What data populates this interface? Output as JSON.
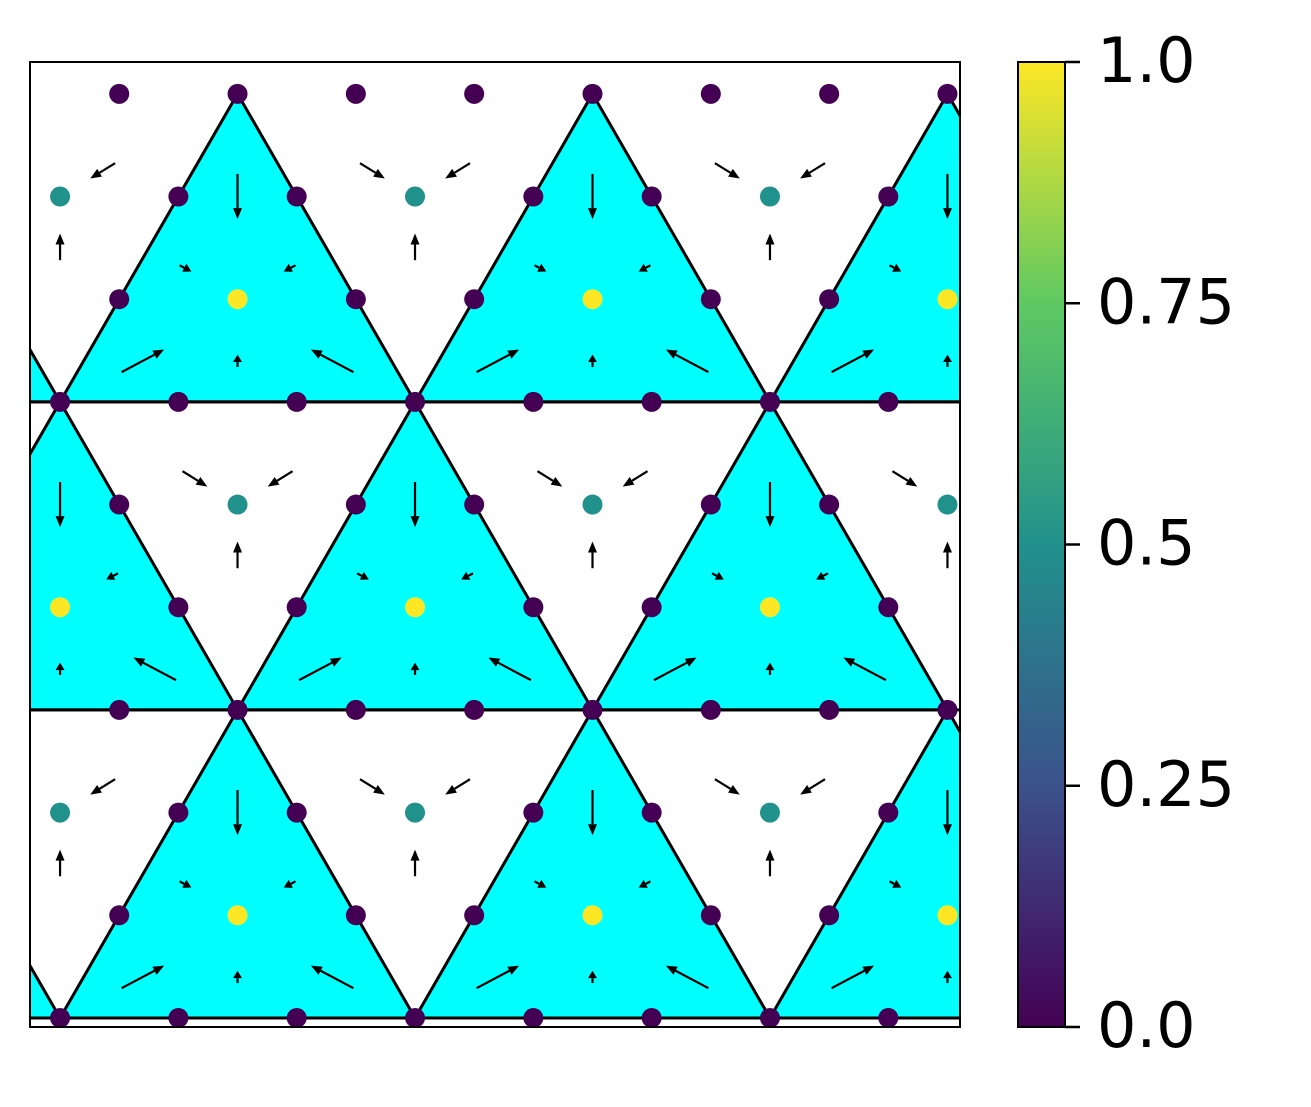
{
  "chart_data": {
    "type": "scatter",
    "x": [
      0,
      1,
      2,
      3,
      4,
      5,
      6,
      7,
      0.5,
      1.5,
      2.5,
      3.5,
      4.5,
      5.5,
      6.5,
      7.5,
      0,
      1,
      2,
      3,
      4,
      5,
      6,
      7,
      0.5,
      1.5,
      2.5,
      3.5,
      4.5,
      5.5,
      6.5,
      7.5,
      0,
      1,
      2,
      3,
      4,
      5,
      6,
      7,
      0.5,
      1.5,
      2.5,
      3.5,
      4.5,
      5.5,
      6.5,
      7.5,
      0,
      1,
      2,
      3,
      4,
      5,
      6,
      7,
      0.5,
      1.5,
      2.5,
      3.5,
      4.5,
      5.5,
      6.5,
      7.5,
      0,
      1,
      2,
      3,
      4,
      5,
      6,
      7,
      0.5,
      1.5,
      2.5,
      3.5,
      4.5,
      5.5,
      6.5,
      7.5
    ],
    "y": [
      0,
      0,
      0,
      0,
      0,
      0,
      0,
      0,
      1,
      1,
      1,
      1,
      1,
      1,
      1,
      1,
      2,
      2,
      2,
      2,
      2,
      2,
      2,
      2,
      3,
      3,
      3,
      3,
      3,
      3,
      3,
      3,
      4,
      4,
      4,
      4,
      4,
      4,
      4,
      4,
      5,
      5,
      5,
      5,
      5,
      5,
      5,
      5,
      6,
      6,
      6,
      6,
      6,
      6,
      6,
      6,
      7,
      7,
      7,
      7,
      7,
      7,
      7,
      7,
      8,
      8,
      8,
      8,
      8,
      8,
      8,
      8,
      9,
      9,
      9,
      9,
      9,
      9,
      9,
      9
    ],
    "values": [
      0,
      0,
      0,
      0,
      0,
      0,
      0,
      0,
      0,
      1,
      0,
      0,
      1,
      0,
      0,
      1,
      0.5,
      0,
      0,
      0.5,
      0,
      0,
      0.5,
      0,
      0,
      0,
      0,
      0,
      0,
      0,
      0,
      0,
      1,
      0,
      0,
      1,
      0,
      0,
      1,
      0,
      0,
      0.5,
      0,
      0,
      0.5,
      0,
      0,
      0.5,
      0,
      0,
      0,
      0,
      0,
      0,
      0,
      0,
      0,
      1,
      0,
      0,
      1,
      0,
      0,
      1,
      0.5,
      0,
      0,
      0.5,
      0,
      0,
      0.5,
      0,
      0,
      0,
      0,
      0,
      0,
      0,
      0,
      0
    ],
    "xlim": [
      -0.254,
      7.606
    ],
    "ylim": [
      -0.088,
      9.31
    ],
    "cmap": "viridis",
    "clim": [
      0,
      1
    ],
    "cticks": [
      {
        "value": 0,
        "label": "0.0"
      },
      0.25,
      0.5,
      0.75,
      {
        "value": 1,
        "label": "1.0"
      }
    ],
    "fill_color": "#00ffff",
    "quiver": {
      "x": [
        1.5,
        1.06,
        1.94,
        1.5,
        0.7,
        2.3,
        4.5,
        4.06,
        4.94,
        4.5,
        3.7,
        5.3,
        7.5,
        7.06,
        7.5,
        6.7,
        0,
        0.44,
        0,
        0.8,
        3,
        2.56,
        3.44,
        3,
        2.2,
        3.8,
        6,
        5.56,
        6.44,
        6,
        5.2,
        6.8,
        1.5,
        1.06,
        1.94,
        1.5,
        0.7,
        2.3,
        4.5,
        4.06,
        4.94,
        4.5,
        3.7,
        5.3,
        7.5,
        7.06,
        7.5,
        6.7,
        0.36,
        0,
        2.64,
        3.36,
        3,
        5.64,
        6.36,
        6,
        1.14,
        1.86,
        1.5,
        4.14,
        4.86,
        4.5,
        7.14,
        7.5,
        0.36,
        0,
        2.64,
        3.36,
        3,
        5.64,
        6.36,
        6
      ],
      "y": [
        2,
        1.3,
        1.3,
        0.4,
        0.4,
        0.4,
        2,
        1.3,
        1.3,
        0.4,
        0.4,
        0.4,
        2,
        1.3,
        0.4,
        0.4,
        5,
        4.3,
        3.4,
        3.4,
        5,
        4.3,
        4.3,
        3.4,
        3.4,
        3.4,
        5,
        4.3,
        4.3,
        3.4,
        3.4,
        3.4,
        8,
        7.3,
        7.3,
        6.4,
        6.4,
        6.4,
        8,
        7.3,
        7.3,
        6.4,
        6.4,
        6.4,
        8,
        7.3,
        6.4,
        6.4,
        2.25,
        1.51,
        2.25,
        2.25,
        1.51,
        2.25,
        2.25,
        1.51,
        5.25,
        5.25,
        4.51,
        5.25,
        5.25,
        4.51,
        5.25,
        4.51,
        8.25,
        7.51,
        8.25,
        8.25,
        7.51,
        8.25,
        8.25,
        7.51
      ],
      "u": [
        0,
        0.1,
        -0.1,
        0,
        0.36,
        -0.36,
        0,
        0.1,
        -0.1,
        0,
        0.36,
        -0.36,
        0,
        0.1,
        0,
        0.36,
        0,
        -0.1,
        0,
        -0.36,
        0,
        0.1,
        -0.1,
        0,
        0.36,
        -0.36,
        0,
        0.1,
        -0.1,
        0,
        0.36,
        -0.36,
        0,
        0.1,
        -0.1,
        0,
        0.36,
        -0.36,
        0,
        0.1,
        -0.1,
        0,
        0.36,
        -0.36,
        0,
        0.1,
        0,
        0.36,
        -0.21,
        0,
        0.21,
        -0.21,
        0,
        0.21,
        -0.21,
        0,
        0.21,
        -0.21,
        0,
        0.21,
        -0.21,
        0,
        0.21,
        0,
        -0.21,
        0,
        0.21,
        -0.21,
        0,
        0.21,
        -0.21,
        0
      ],
      "v": [
        -0.44,
        -0.06,
        -0.06,
        0.12,
        0.22,
        0.22,
        -0.44,
        -0.06,
        -0.06,
        0.12,
        0.22,
        0.22,
        -0.44,
        -0.06,
        0.12,
        0.22,
        -0.44,
        -0.06,
        0.12,
        0.22,
        -0.44,
        -0.06,
        -0.06,
        0.12,
        0.22,
        0.22,
        -0.44,
        -0.06,
        -0.06,
        0.12,
        0.22,
        0.22,
        -0.44,
        -0.06,
        -0.06,
        0.12,
        0.22,
        0.22,
        -0.44,
        -0.06,
        -0.06,
        0.12,
        0.22,
        0.22,
        -0.44,
        -0.06,
        0.12,
        0.22,
        -0.15,
        0.26,
        -0.15,
        -0.15,
        0.26,
        -0.15,
        -0.15,
        0.26,
        -0.15,
        -0.15,
        0.26,
        -0.15,
        -0.15,
        0.26,
        -0.15,
        0.26,
        -0.15,
        0.26,
        -0.15,
        -0.15,
        0.26,
        -0.15,
        -0.15,
        0.26
      ]
    }
  }
}
